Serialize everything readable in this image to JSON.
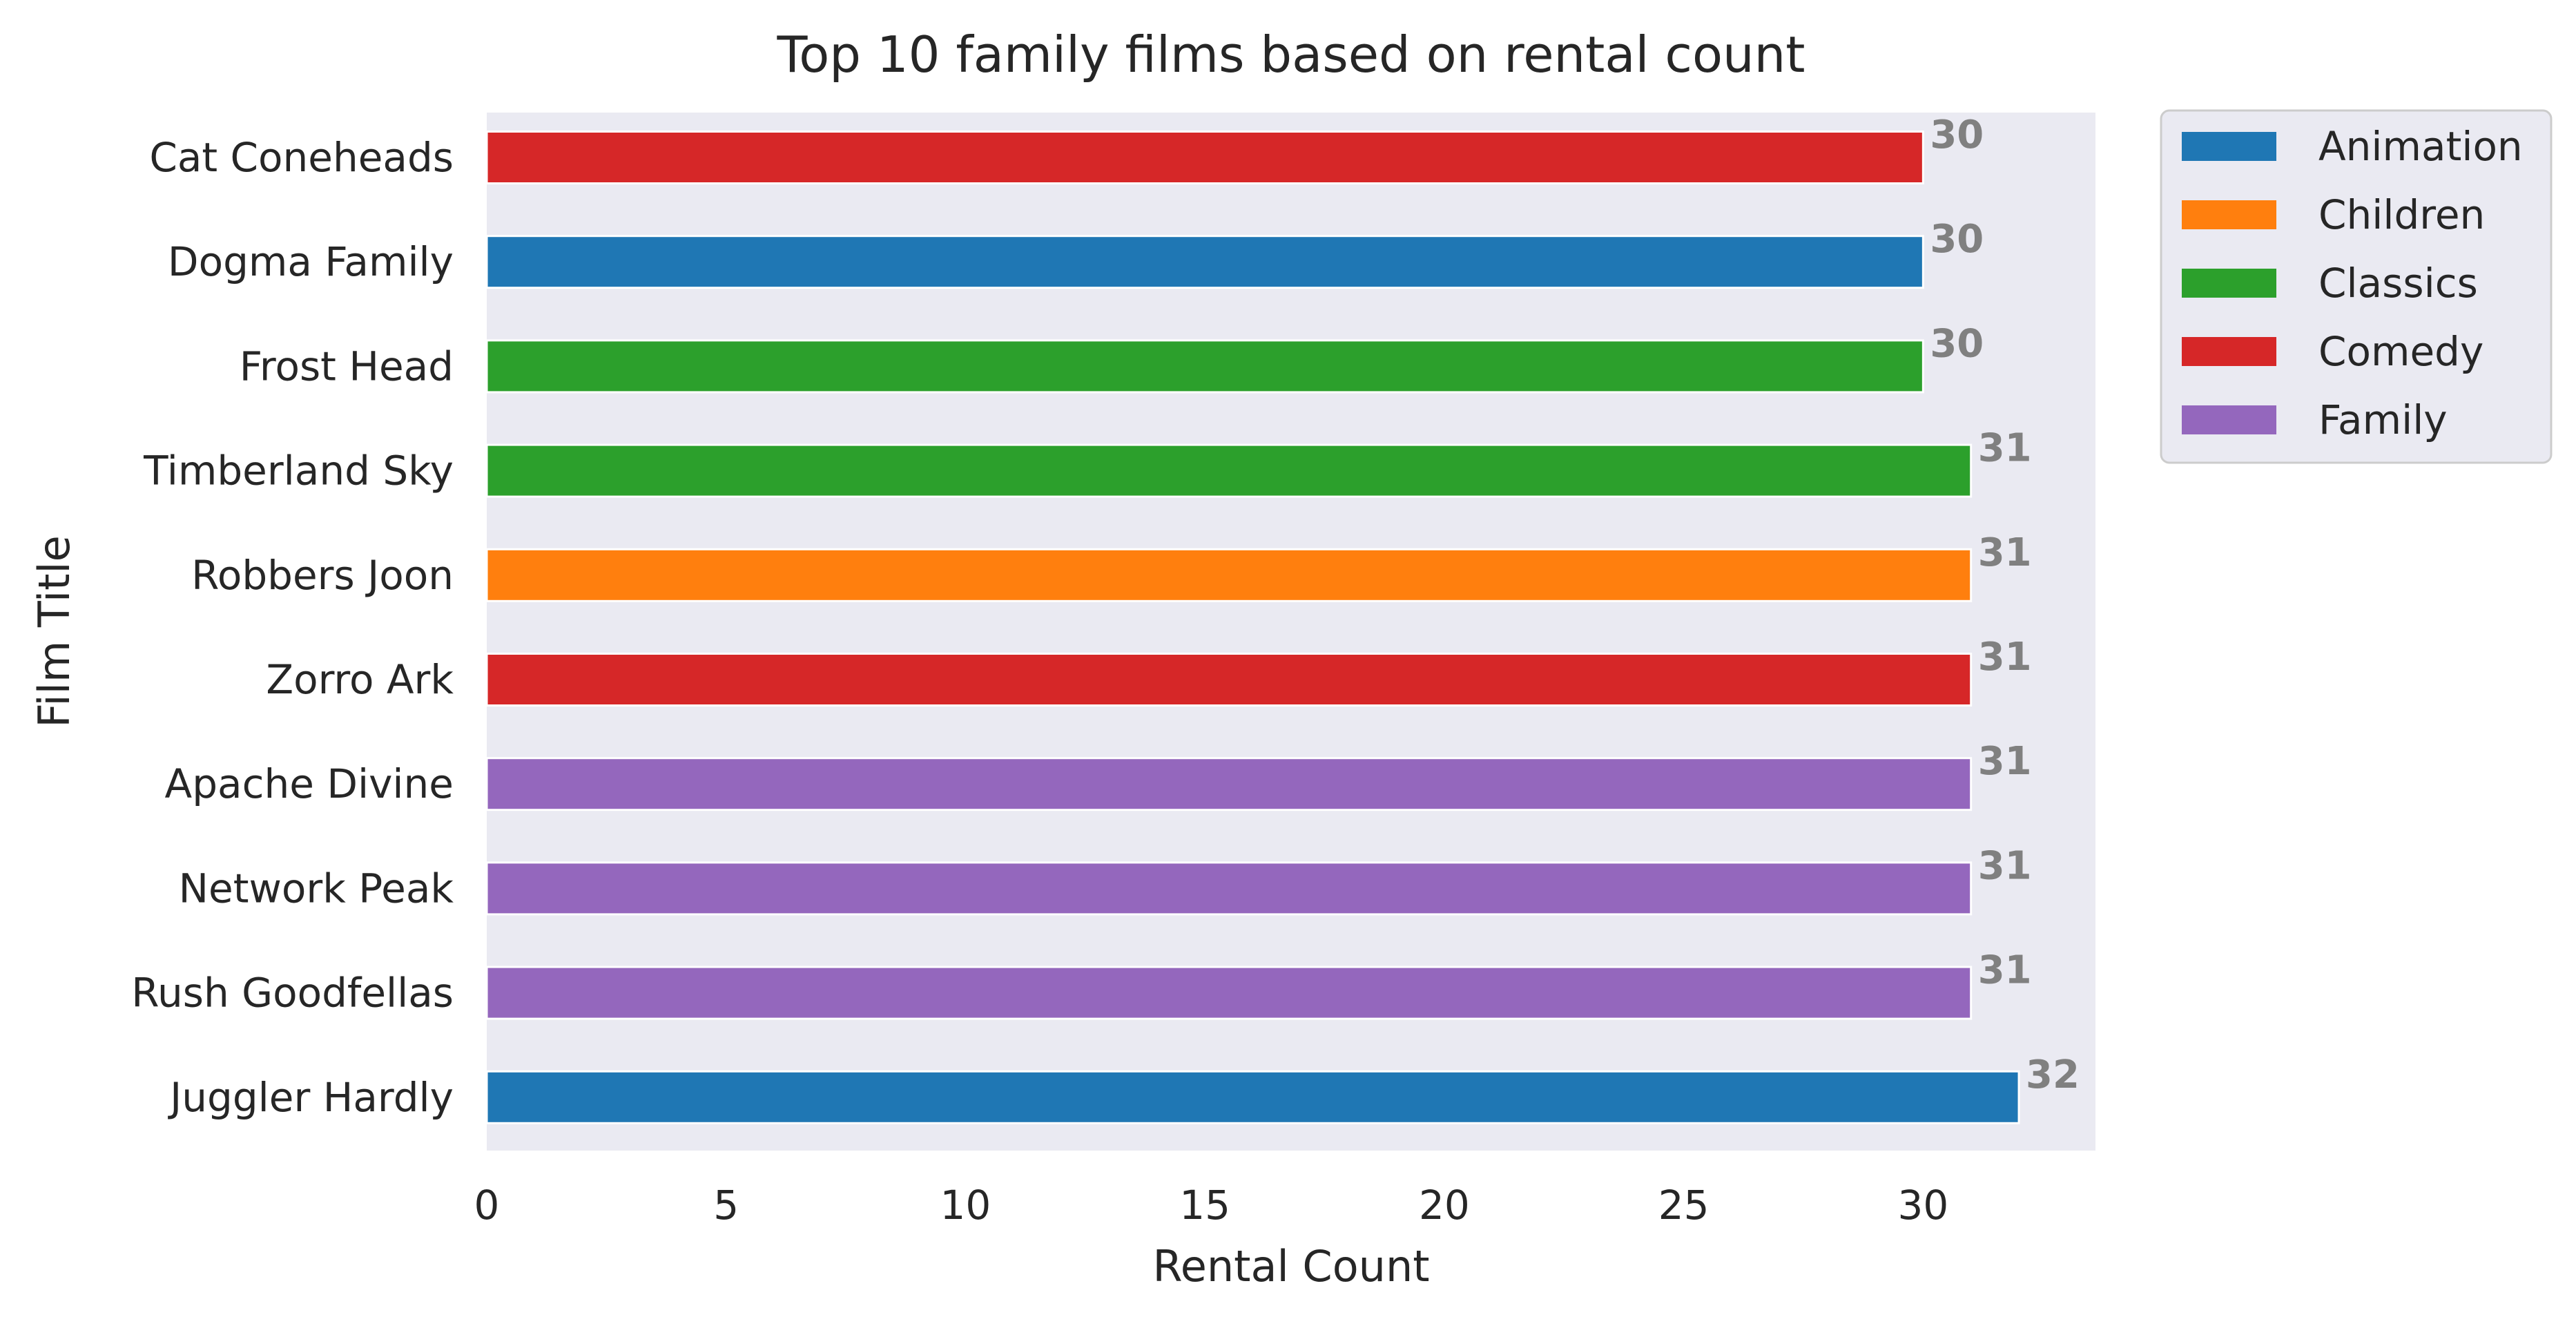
{
  "chart_data": {
    "type": "bar",
    "orientation": "horizontal",
    "title": "Top 10 family films based on rental count",
    "xlabel": "Rental Count",
    "ylabel": "Film Title",
    "xlim": [
      0,
      33.6
    ],
    "xticks": [
      0,
      5,
      10,
      15,
      20,
      25,
      30
    ],
    "grid": false,
    "legend_position": "outside-top-right",
    "background_color": "#EAEAF2",
    "value_label_color": "#808080",
    "categories": [
      "Cat Coneheads",
      "Dogma Family",
      "Frost Head",
      "Timberland Sky",
      "Robbers Joon",
      "Zorro Ark",
      "Apache Divine",
      "Network Peak",
      "Rush Goodfellas",
      "Juggler Hardly"
    ],
    "values": [
      30,
      30,
      30,
      31,
      31,
      31,
      31,
      31,
      31,
      32
    ],
    "bar_categories": [
      "Comedy",
      "Animation",
      "Classics",
      "Classics",
      "Children",
      "Comedy",
      "Family",
      "Family",
      "Family",
      "Animation"
    ],
    "legend": [
      {
        "name": "Animation",
        "color": "#1F77B4"
      },
      {
        "name": "Children",
        "color": "#FF7F0E"
      },
      {
        "name": "Classics",
        "color": "#2CA02C"
      },
      {
        "name": "Comedy",
        "color": "#D62728"
      },
      {
        "name": "Family",
        "color": "#9467BD"
      }
    ]
  }
}
